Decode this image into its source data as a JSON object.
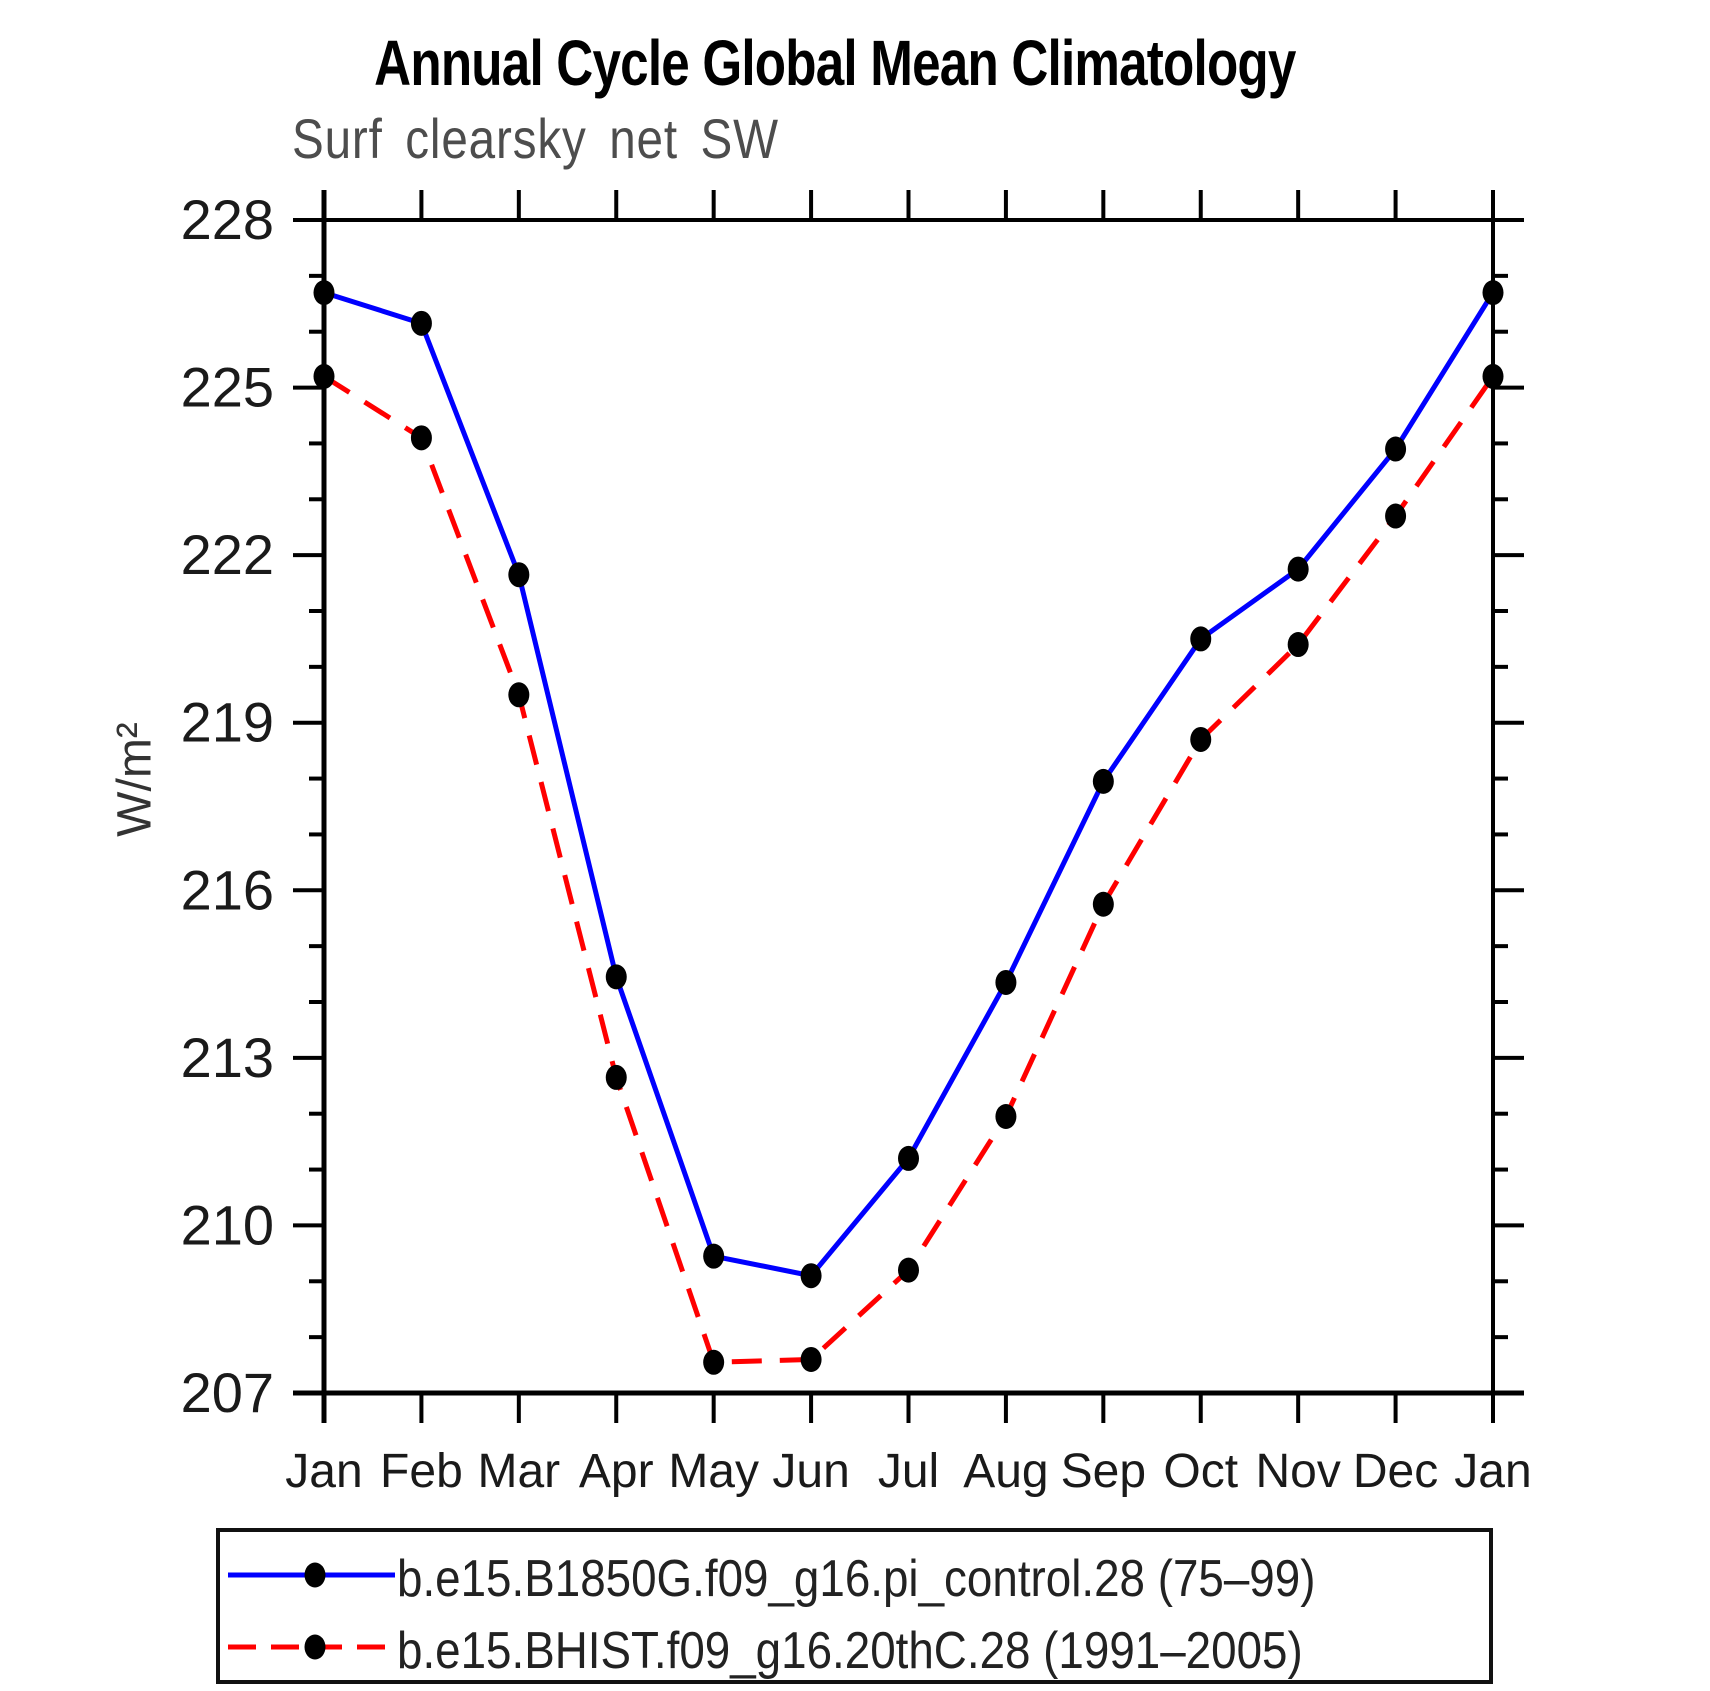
{
  "title": "Annual Cycle Global Mean Climatology",
  "subtitle": "Surf clearsky net SW",
  "chart_data": {
    "type": "line",
    "x_categories": [
      "Jan",
      "Feb",
      "Mar",
      "Apr",
      "May",
      "Jun",
      "Jul",
      "Aug",
      "Sep",
      "Oct",
      "Nov",
      "Dec",
      "Jan"
    ],
    "ylabel": "W/m²",
    "ylim": [
      207,
      228
    ],
    "ytick_major_interval": 3,
    "ytick_minor_interval": 1,
    "ytick_labels": [
      "228",
      "225",
      "222",
      "219",
      "216",
      "213",
      "210",
      "207"
    ],
    "grid": "off",
    "legend_position": "bottom",
    "axis_color": "#000000",
    "series": [
      {
        "name": "b.e15.B1850G.f09_g16.pi_control.28 (75–99)",
        "color": "#0000ff",
        "line_style": "solid",
        "marker": "filled-circle",
        "marker_color": "#000000",
        "values": [
          226.7,
          226.15,
          221.65,
          214.45,
          209.45,
          209.1,
          211.2,
          214.35,
          217.95,
          220.5,
          221.75,
          223.9,
          226.7
        ]
      },
      {
        "name": "b.e15.BHIST.f09_g16.20thC.28 (1991–2005)",
        "color": "#ff0000",
        "line_style": "dashed",
        "marker": "filled-circle",
        "marker_color": "#000000",
        "values": [
          225.2,
          224.1,
          219.5,
          212.65,
          207.55,
          207.6,
          209.2,
          211.95,
          215.75,
          218.7,
          220.4,
          222.7,
          225.2
        ]
      }
    ]
  }
}
